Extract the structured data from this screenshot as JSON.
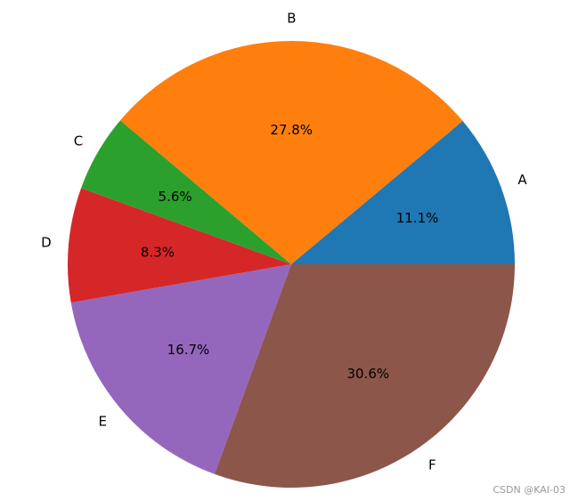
{
  "chart_data": {
    "type": "pie",
    "categories": [
      "A",
      "B",
      "C",
      "D",
      "E",
      "F"
    ],
    "values": [
      11.1,
      27.8,
      5.6,
      8.3,
      16.7,
      30.6
    ],
    "percent_labels": [
      "11.1%",
      "27.8%",
      "5.6%",
      "8.3%",
      "16.7%",
      "30.6%"
    ],
    "colors": [
      "#1f77b4",
      "#ff7f0e",
      "#2ca02c",
      "#d62728",
      "#9467bd",
      "#8c564b"
    ],
    "start_angle_deg": 0,
    "direction": "counterclockwise",
    "title": ""
  },
  "watermark": "CSDN @KAI-03"
}
